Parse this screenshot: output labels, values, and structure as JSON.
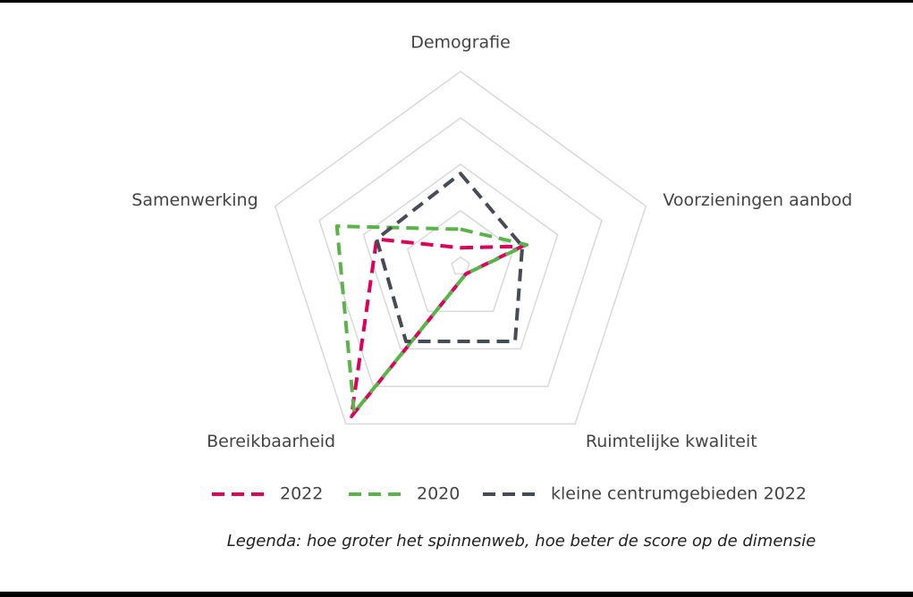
{
  "chart_data": {
    "type": "radar",
    "categories": [
      "Demografie",
      "Voorzieningen aanbod",
      "Ruimtelijke kwaliteit",
      "Bereikbaarheid",
      "Samenwerking"
    ],
    "series": [
      {
        "name": "2022",
        "color": "#e0005a",
        "values": [
          1.2,
          2.2,
          1.0,
          4.8,
          2.7
        ]
      },
      {
        "name": "2020",
        "color": "#5ab44a",
        "values": [
          1.6,
          2.3,
          1.0,
          4.7,
          3.6
        ]
      },
      {
        "name": "kleine centrumgebieden 2022",
        "color": "#464c55",
        "values": [
          2.8,
          2.2,
          2.8,
          2.8,
          2.7
        ]
      }
    ],
    "rlim": [
      0.8,
      5
    ],
    "rticks": [
      1,
      2,
      3,
      4,
      5
    ],
    "grid": true,
    "note": "Legenda: hoe groter het spinnenweb, hoe beter de score op de dimensie"
  }
}
